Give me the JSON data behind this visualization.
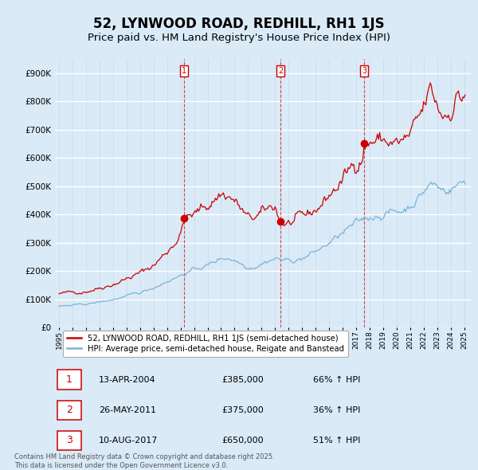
{
  "title": "52, LYNWOOD ROAD, REDHILL, RH1 1JS",
  "subtitle": "Price paid vs. HM Land Registry's House Price Index (HPI)",
  "title_fontsize": 12,
  "subtitle_fontsize": 9.5,
  "bg_color": "#daeaf7",
  "plot_bg_color": "#daeaf7",
  "line1_color": "#cc0000",
  "line2_color": "#7ab4d8",
  "ylim": [
    0,
    950000
  ],
  "yticks": [
    0,
    100000,
    200000,
    300000,
    400000,
    500000,
    600000,
    700000,
    800000,
    900000
  ],
  "ytick_labels": [
    "£0",
    "£100K",
    "£200K",
    "£300K",
    "£400K",
    "£500K",
    "£600K",
    "£700K",
    "£800K",
    "£900K"
  ],
  "marker_years": [
    2004.28,
    2011.41,
    2017.61
  ],
  "marker_prices": [
    385000,
    375000,
    650000
  ],
  "marker_labels": [
    "1",
    "2",
    "3"
  ],
  "legend_entries": [
    "52, LYNWOOD ROAD, REDHILL, RH1 1JS (semi-detached house)",
    "HPI: Average price, semi-detached house, Reigate and Banstead"
  ],
  "table_rows": [
    {
      "num": "1",
      "date": "13-APR-2004",
      "price": "£385,000",
      "hpi": "66% ↑ HPI"
    },
    {
      "num": "2",
      "date": "26-MAY-2011",
      "price": "£375,000",
      "hpi": "36% ↑ HPI"
    },
    {
      "num": "3",
      "date": "10-AUG-2017",
      "price": "£650,000",
      "hpi": "51% ↑ HPI"
    }
  ],
  "footer": "Contains HM Land Registry data © Crown copyright and database right 2025.\nThis data is licensed under the Open Government Licence v3.0.",
  "xlim": [
    1994.7,
    2025.5
  ],
  "xtick_years": [
    1995,
    1996,
    1997,
    1998,
    1999,
    2000,
    2001,
    2002,
    2003,
    2004,
    2005,
    2006,
    2007,
    2008,
    2009,
    2010,
    2011,
    2012,
    2013,
    2014,
    2015,
    2016,
    2017,
    2018,
    2019,
    2020,
    2021,
    2022,
    2023,
    2024,
    2025
  ]
}
